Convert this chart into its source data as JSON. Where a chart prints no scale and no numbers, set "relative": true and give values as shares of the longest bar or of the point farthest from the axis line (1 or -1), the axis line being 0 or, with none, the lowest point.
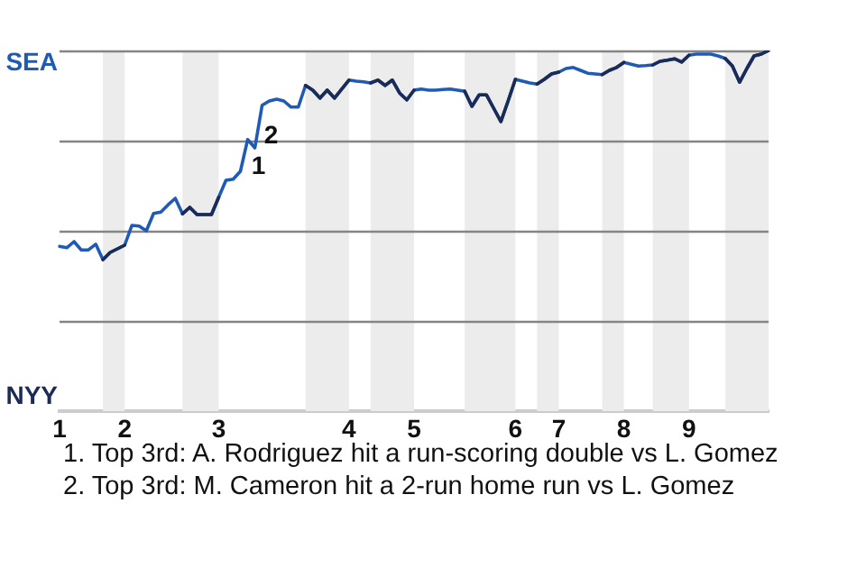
{
  "chart_data": {
    "type": "line",
    "relative": true,
    "categories": [
      "1",
      null,
      null,
      null,
      null,
      null,
      null,
      null,
      null,
      "2",
      null,
      null,
      null,
      null,
      null,
      null,
      null,
      null,
      null,
      null,
      null,
      null,
      "3",
      null,
      null,
      null,
      null,
      null,
      null,
      null,
      null,
      null,
      null,
      null,
      null,
      null,
      null,
      null,
      null,
      null,
      "4",
      null,
      null,
      null,
      null,
      null,
      null,
      null,
      null,
      "5",
      null,
      null,
      null,
      null,
      null,
      null,
      null,
      null,
      null,
      null,
      null,
      null,
      null,
      "6",
      null,
      null,
      null,
      null,
      null,
      "7",
      null,
      null,
      null,
      null,
      null,
      null,
      null,
      null,
      "8",
      null,
      null,
      null,
      null,
      null,
      null,
      null,
      null,
      "9",
      null,
      null,
      null,
      null,
      null,
      null,
      null,
      null,
      null,
      null,
      null
    ],
    "series": [
      {
        "color": "#1f5bb5",
        "values": [
          0.457,
          0.453,
          0.47,
          0.447,
          0.447,
          0.463,
          0.42,
          0.44,
          0.45,
          0.46,
          0.515,
          0.513,
          0.5,
          0.548,
          0.552,
          0.572,
          0.59,
          0.547,
          0.565,
          0.545,
          0.545,
          0.545,
          0.593,
          0.64,
          0.643,
          0.665,
          0.753,
          0.73,
          0.848,
          0.86,
          0.865,
          0.86,
          0.843,
          0.843,
          0.903,
          0.89,
          0.868,
          0.89,
          0.868,
          0.893,
          0.918,
          0.915,
          0.913,
          0.91,
          0.918,
          0.903,
          0.918,
          0.882,
          0.863,
          0.89,
          0.893,
          0.89,
          0.89,
          0.892,
          0.893,
          0.89,
          0.887,
          0.845,
          0.877,
          0.877,
          0.84,
          0.803,
          0.86,
          0.92,
          0.915,
          0.91,
          0.907,
          0.92,
          0.935,
          0.94,
          0.95,
          0.953,
          0.945,
          0.937,
          0.935,
          0.933,
          0.945,
          0.953,
          0.967,
          0.962,
          0.957,
          0.958,
          0.96,
          0.97,
          0.973,
          0.977,
          0.968,
          0.987,
          0.99,
          0.99,
          0.99,
          0.985,
          0.978,
          0.957,
          0.912,
          0.95,
          0.985,
          0.99,
          1
        ]
      },
      {
        "color": "#1b2b55",
        "values": [
          null,
          null,
          null,
          null,
          null,
          null,
          0.42,
          0.44,
          0.45,
          0.46,
          null,
          null,
          null,
          null,
          null,
          null,
          null,
          0.547,
          0.565,
          0.545,
          0.545,
          0.545,
          0.593,
          null,
          null,
          null,
          null,
          null,
          null,
          null,
          null,
          null,
          null,
          null,
          0.903,
          0.89,
          0.868,
          0.89,
          0.868,
          0.893,
          0.918,
          null,
          null,
          0.91,
          0.918,
          0.903,
          0.918,
          0.882,
          0.863,
          0.89,
          null,
          null,
          null,
          null,
          null,
          null,
          0.887,
          0.845,
          0.877,
          0.877,
          0.84,
          0.803,
          0.86,
          0.92,
          null,
          null,
          0.907,
          0.92,
          0.935,
          0.94,
          null,
          null,
          null,
          null,
          null,
          0.933,
          0.945,
          0.953,
          0.967,
          null,
          null,
          null,
          0.96,
          0.97,
          0.973,
          0.977,
          0.968,
          0.987,
          null,
          null,
          null,
          null,
          0.978,
          0.957,
          0.912,
          0.95,
          0.985,
          0.99,
          1
        ]
      }
    ],
    "ref_lines": [
      {
        "axis": "y",
        "value": 0.25,
        "color": "#858585"
      },
      {
        "axis": "y",
        "value": 0.5,
        "color": "#858585"
      },
      {
        "axis": "y",
        "value": 0.75,
        "color": "#858585"
      },
      {
        "axis": "y",
        "value": 1,
        "color": "#858585"
      }
    ],
    "annotations": [
      "SEA",
      "NYY",
      {
        "text": "1",
        "y": 0.753
      },
      {
        "text": "2",
        "y": 0.848
      },
      "1. Top 3rd: A. Rodriguez hit a run-scoring double vs L. Gomez",
      "2. Top 3rd: M. Cameron hit a 2-run home run vs L. Gomez"
    ]
  }
}
